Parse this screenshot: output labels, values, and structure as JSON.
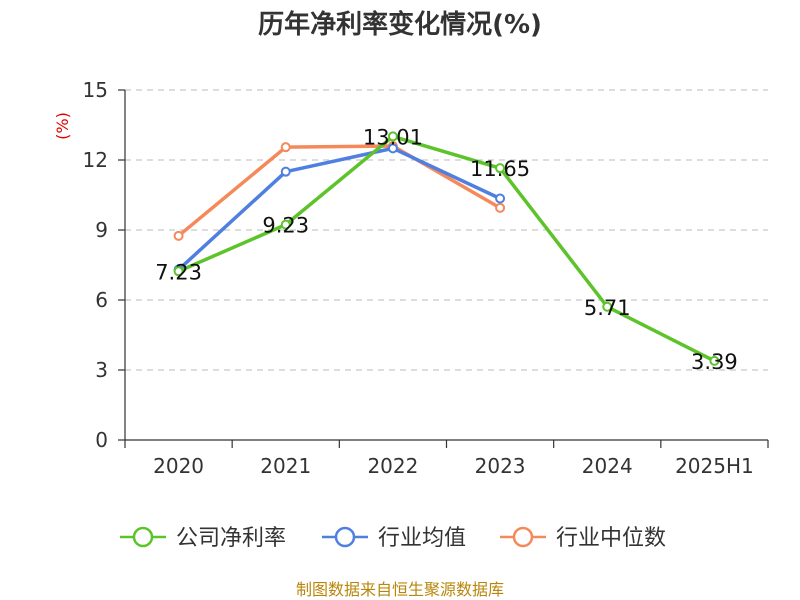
{
  "chart_data": {
    "type": "line",
    "title": "历年净利率变化情况(%)",
    "ylabel": "(%)",
    "xlabel": "",
    "categories": [
      "2020",
      "2021",
      "2022",
      "2023",
      "2024",
      "2025H1"
    ],
    "ylim": [
      0,
      15
    ],
    "yticks": [
      0,
      3,
      6,
      9,
      12,
      15
    ],
    "grid": true,
    "legend_position": "bottom",
    "series": [
      {
        "name": "公司净利率",
        "color": "#5cc42a",
        "values": [
          7.23,
          9.23,
          13.01,
          11.65,
          5.71,
          3.39
        ],
        "labels": [
          "7.23",
          "9.23",
          "13.01",
          "11.65",
          "5.71",
          "3.39"
        ]
      },
      {
        "name": "行业均值",
        "color": "#4f7fe0",
        "values": [
          7.3,
          11.5,
          12.5,
          10.35,
          null,
          null
        ]
      },
      {
        "name": "行业中位数",
        "color": "#f5895a",
        "values": [
          8.75,
          12.55,
          12.6,
          9.95,
          null,
          null
        ]
      }
    ]
  },
  "source": "制图数据来自恒生聚源数据库"
}
